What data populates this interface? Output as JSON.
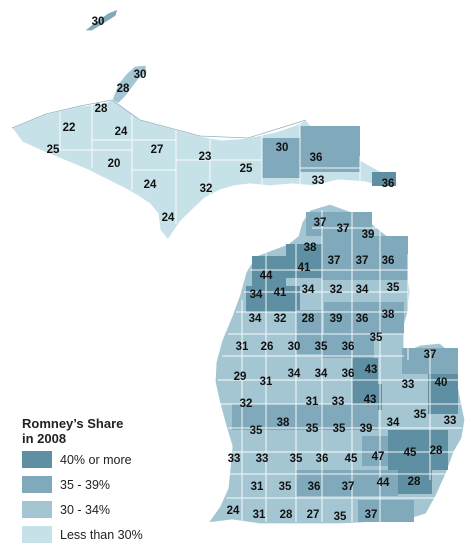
{
  "legend": {
    "title_line1": "Romney’s Share",
    "title_line2": "in 2008",
    "items": [
      {
        "label": "40% or more",
        "color": "#5f8fa2"
      },
      {
        "label": "35 - 39%",
        "color": "#80a9bb"
      },
      {
        "label": "30 - 34%",
        "color": "#a4c6d2"
      },
      {
        "label": "Less than 30%",
        "color": "#c7e1e8"
      }
    ]
  },
  "county_values": [
    30,
    30,
    28,
    28,
    22,
    24,
    25,
    27,
    20,
    23,
    30,
    36,
    25,
    24,
    32,
    33,
    36,
    24,
    37,
    37,
    39,
    38,
    44,
    41,
    37,
    37,
    36,
    34,
    41,
    34,
    32,
    34,
    35,
    34,
    32,
    28,
    39,
    36,
    38,
    35,
    31,
    26,
    30,
    35,
    36,
    37,
    29,
    31,
    34,
    34,
    36,
    43,
    33,
    40,
    32,
    31,
    33,
    43,
    35,
    38,
    35,
    35,
    39,
    34,
    35,
    33,
    33,
    33,
    35,
    36,
    45,
    47,
    45,
    28,
    31,
    35,
    36,
    37,
    44,
    28,
    24,
    31,
    28,
    27,
    35,
    37
  ]
}
